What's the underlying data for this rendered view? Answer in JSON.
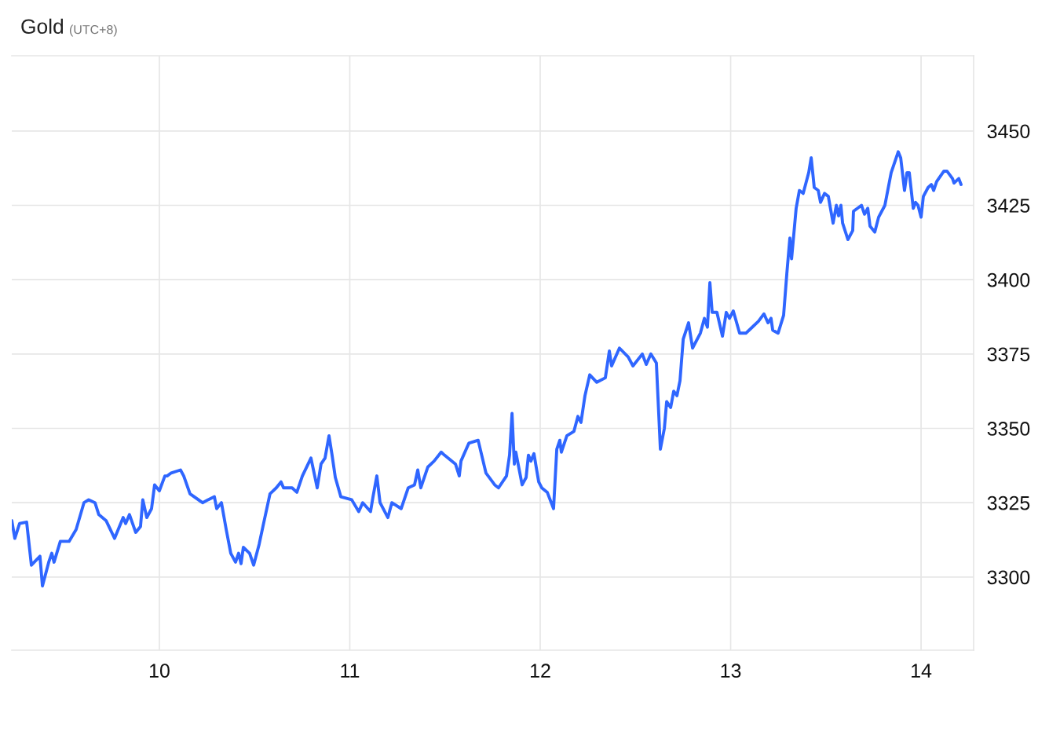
{
  "chart_data": {
    "type": "line",
    "title": "Gold",
    "subtitle": "(UTC+8)",
    "xlim": [
      9.225,
      14.276
    ],
    "xticks": [
      10,
      11,
      12,
      13,
      14
    ],
    "ylim": [
      3275.4,
      3475.3
    ],
    "yticks": [
      3300,
      3325,
      3350,
      3375,
      3400,
      3425,
      3450
    ],
    "grid": true,
    "marker": "none",
    "line_style": "solid",
    "series": [
      {
        "color": "#2f66ff",
        "x": [
          9.225,
          9.241,
          9.266,
          9.303,
          9.328,
          9.373,
          9.386,
          9.419,
          9.435,
          9.447,
          9.48,
          9.526,
          9.563,
          9.604,
          9.629,
          9.662,
          9.682,
          9.72,
          9.765,
          9.81,
          9.823,
          9.843,
          9.876,
          9.901,
          9.913,
          9.934,
          9.959,
          9.975,
          10.0,
          10.029,
          10.041,
          10.062,
          10.111,
          10.128,
          10.161,
          10.227,
          10.256,
          10.289,
          10.301,
          10.326,
          10.351,
          10.375,
          10.4,
          10.416,
          10.429,
          10.441,
          10.474,
          10.495,
          10.524,
          10.544,
          10.581,
          10.614,
          10.639,
          10.652,
          10.697,
          10.722,
          10.751,
          10.796,
          10.829,
          10.849,
          10.87,
          10.891,
          10.907,
          10.924,
          10.953,
          11.01,
          11.047,
          11.068,
          11.109,
          11.122,
          11.142,
          11.159,
          11.2,
          11.221,
          11.27,
          11.307,
          11.34,
          11.357,
          11.373,
          11.41,
          11.443,
          11.48,
          11.497,
          11.555,
          11.575,
          11.584,
          11.625,
          11.674,
          11.715,
          11.761,
          11.781,
          11.823,
          11.839,
          11.852,
          11.864,
          11.872,
          11.905,
          11.926,
          11.938,
          11.951,
          11.967,
          11.992,
          12.008,
          12.037,
          12.07,
          12.087,
          12.103,
          12.111,
          12.14,
          12.177,
          12.198,
          12.214,
          12.235,
          12.26,
          12.297,
          12.342,
          12.363,
          12.375,
          12.416,
          12.462,
          12.487,
          12.536,
          12.557,
          12.581,
          12.61,
          12.631,
          12.652,
          12.664,
          12.685,
          12.701,
          12.718,
          12.734,
          12.751,
          12.779,
          12.8,
          12.841,
          12.862,
          12.878,
          12.891,
          12.903,
          12.928,
          12.957,
          12.977,
          12.994,
          13.014,
          13.047,
          13.08,
          13.113,
          13.146,
          13.175,
          13.196,
          13.212,
          13.221,
          13.249,
          13.278,
          13.295,
          13.311,
          13.32,
          13.344,
          13.361,
          13.381,
          13.41,
          13.423,
          13.439,
          13.46,
          13.472,
          13.493,
          13.513,
          13.538,
          13.555,
          13.567,
          13.579,
          13.588,
          13.616,
          13.641,
          13.645,
          13.687,
          13.703,
          13.72,
          13.732,
          13.757,
          13.777,
          13.81,
          13.843,
          13.88,
          13.893,
          13.913,
          13.926,
          13.938,
          13.959,
          13.971,
          13.984,
          14.0,
          14.012,
          14.037,
          14.054,
          14.066,
          14.082,
          14.12,
          14.136,
          14.165,
          14.173,
          14.198,
          14.21
        ],
        "values": [
          3319,
          3313,
          3318,
          3318.5,
          3304,
          3307,
          3297,
          3305,
          3308,
          3305,
          3312,
          3312,
          3316,
          3325,
          3326,
          3325,
          3321,
          3319,
          3313,
          3320,
          3318,
          3321,
          3315,
          3317,
          3326,
          3320,
          3323,
          3331,
          3329,
          3334,
          3334,
          3335,
          3336,
          3334,
          3328,
          3325,
          3326,
          3327,
          3323,
          3325,
          3316,
          3308,
          3305,
          3308,
          3304.5,
          3310,
          3308,
          3304,
          3311,
          3317,
          3328,
          3330,
          3332,
          3330,
          3330,
          3328.5,
          3334,
          3340,
          3330,
          3338,
          3340,
          3347.5,
          3341,
          3333.5,
          3327,
          3326,
          3322,
          3325,
          3322,
          3327,
          3334,
          3325,
          3320,
          3325,
          3323,
          3330,
          3331,
          3336,
          3330,
          3337,
          3339,
          3342,
          3341,
          3338,
          3334,
          3339,
          3345,
          3346,
          3335,
          3331,
          3330,
          3334,
          3341,
          3355,
          3338,
          3342,
          3331,
          3333.5,
          3341,
          3339,
          3341.5,
          3332,
          3330,
          3328.5,
          3323,
          3343,
          3346,
          3342,
          3347.5,
          3349,
          3354,
          3352,
          3361,
          3368,
          3365.5,
          3367,
          3376,
          3371,
          3377,
          3374,
          3371,
          3375,
          3371.5,
          3375,
          3372,
          3343,
          3350,
          3359,
          3357,
          3362.5,
          3361,
          3366,
          3380,
          3385.5,
          3377,
          3382,
          3387,
          3384,
          3399,
          3389,
          3389,
          3381,
          3389,
          3387,
          3389.5,
          3382,
          3382,
          3384,
          3386,
          3388.5,
          3385.5,
          3387,
          3383,
          3382,
          3388,
          3402,
          3414,
          3407,
          3424,
          3430,
          3429,
          3436,
          3441,
          3431,
          3430,
          3426,
          3429,
          3428,
          3419,
          3425,
          3421.5,
          3425,
          3419,
          3413.5,
          3416.5,
          3423,
          3425,
          3422,
          3424,
          3418,
          3416,
          3421,
          3425,
          3436,
          3443,
          3441,
          3430,
          3436,
          3436,
          3424,
          3426,
          3425,
          3421,
          3428,
          3431,
          3432,
          3430,
          3433,
          3436.5,
          3436.5,
          3434,
          3432.5,
          3434,
          3432
        ]
      }
    ]
  }
}
